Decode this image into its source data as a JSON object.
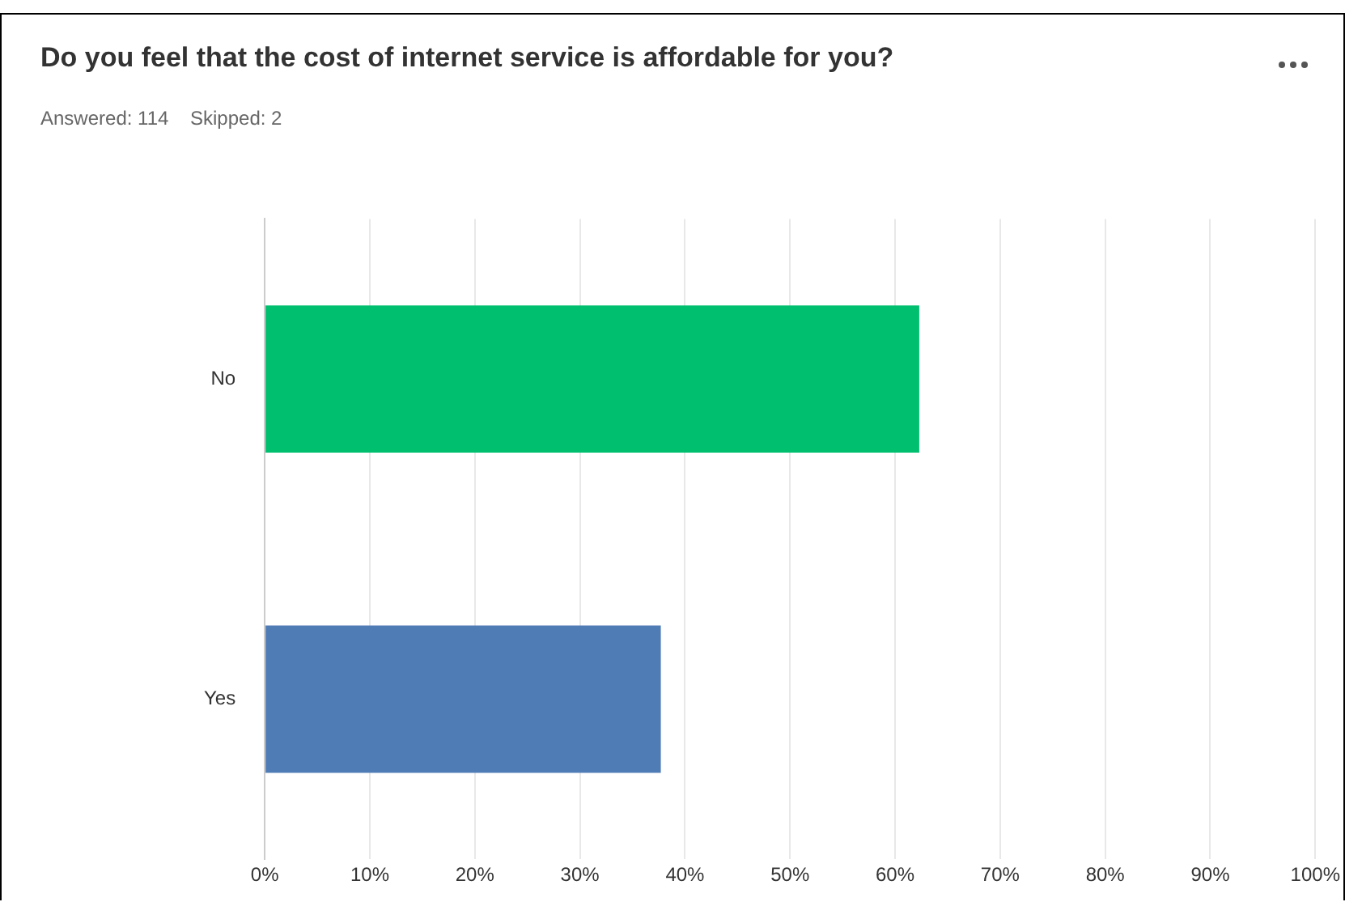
{
  "chart_data": {
    "type": "bar",
    "orientation": "horizontal",
    "title": "Do you feel that the cost of internet service is affordable for you?",
    "subtitle": "Answered: 114    Skipped: 2",
    "categories": [
      "No",
      "Yes"
    ],
    "values": [
      62.3,
      37.7
    ],
    "colors": [
      "#00bf6f",
      "#507cb6"
    ],
    "xlim": [
      0,
      100
    ],
    "xticks": [
      {
        "value": 0,
        "label": "0%"
      },
      {
        "value": 10,
        "label": "10%"
      },
      {
        "value": 20,
        "label": "20%"
      },
      {
        "value": 30,
        "label": "30%"
      },
      {
        "value": 40,
        "label": "40%"
      },
      {
        "value": 50,
        "label": "50%"
      },
      {
        "value": 60,
        "label": "60%"
      },
      {
        "value": 70,
        "label": "70%"
      },
      {
        "value": 80,
        "label": "80%"
      },
      {
        "value": 90,
        "label": "90%"
      },
      {
        "value": 100,
        "label": "100%"
      }
    ],
    "grid": "x",
    "legend": false
  }
}
